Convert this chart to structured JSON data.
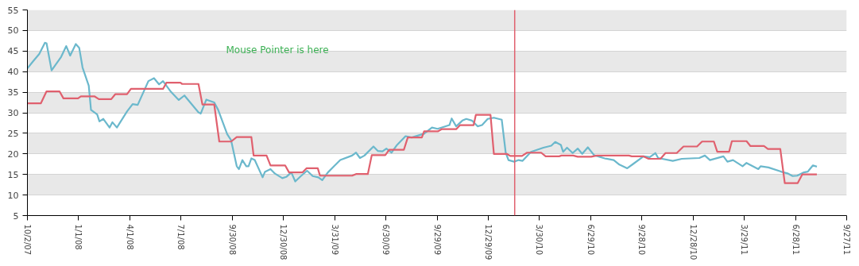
{
  "chart_data": {
    "type": "line",
    "annotations": [
      "Mouse Pointer is here"
    ],
    "xlim": [
      "2007-10-02",
      "2011-09-27"
    ],
    "xticks": [
      {
        "value": "2007-10-02",
        "label": "10/2/07"
      },
      {
        "value": "2008-01-01",
        "label": "1/1/08"
      },
      {
        "value": "2008-04-01",
        "label": "4/1/08"
      },
      {
        "value": "2008-07-01",
        "label": "7/1/08"
      },
      {
        "value": "2008-09-30",
        "label": "9/30/08"
      },
      {
        "value": "2008-12-30",
        "label": "12/30/08"
      },
      {
        "value": "2009-03-31",
        "label": "3/31/09"
      },
      {
        "value": "2009-06-30",
        "label": "6/30/09"
      },
      {
        "value": "2009-09-29",
        "label": "9/29/09"
      },
      {
        "value": "2009-12-29",
        "label": "12/29/09"
      },
      {
        "value": "2010-03-30",
        "label": "3/30/10"
      },
      {
        "value": "2010-06-29",
        "label": "6/29/10"
      },
      {
        "value": "2010-09-28",
        "label": "9/28/10"
      },
      {
        "value": "2010-12-28",
        "label": "12/28/10"
      },
      {
        "value": "2011-03-29",
        "label": "3/29/11"
      },
      {
        "value": "2011-06-28",
        "label": "6/28/11"
      },
      {
        "value": "2011-09-27",
        "label": "9/27/11"
      }
    ],
    "ylim": [
      5,
      55
    ],
    "yticks": [
      5,
      10,
      15,
      20,
      25,
      30,
      35,
      40,
      45,
      50,
      55
    ],
    "grid": "y",
    "line_style": "solid",
    "ref_lines": [
      {
        "axis": "x",
        "value": "2010-02-14",
        "label": null,
        "color": "#e0606e"
      }
    ],
    "series": [
      {
        "color": "#6bb8cc",
        "x": [
          "2007-10-02",
          "2007-10-12",
          "2007-10-23",
          "2007-11-02",
          "2007-11-05",
          "2007-11-14",
          "2007-12-01",
          "2007-12-10",
          "2007-12-17",
          "2007-12-27",
          "2008-01-02",
          "2008-01-08",
          "2008-01-19",
          "2008-01-23",
          "2008-02-03",
          "2008-02-07",
          "2008-02-14",
          "2008-02-25",
          "2008-03-01",
          "2008-03-09",
          "2008-03-27",
          "2008-04-06",
          "2008-04-15",
          "2008-05-04",
          "2008-05-14",
          "2008-05-23",
          "2008-05-30",
          "2008-06-13",
          "2008-06-27",
          "2008-07-07",
          "2008-08-01",
          "2008-08-05",
          "2008-08-15",
          "2008-08-29",
          "2008-09-05",
          "2008-09-21",
          "2008-09-28",
          "2008-10-08",
          "2008-10-12",
          "2008-10-18",
          "2008-10-25",
          "2008-10-29",
          "2008-11-03",
          "2008-11-09",
          "2008-11-20",
          "2008-11-23",
          "2008-11-27",
          "2008-12-07",
          "2008-12-15",
          "2008-12-28",
          "2009-01-04",
          "2009-01-13",
          "2009-01-20",
          "2009-01-30",
          "2009-02-10",
          "2009-02-20",
          "2009-03-02",
          "2009-03-09",
          "2009-03-19",
          "2009-03-30",
          "2009-04-10",
          "2009-05-01",
          "2009-05-08",
          "2009-05-15",
          "2009-05-23",
          "2009-06-08",
          "2009-06-16",
          "2009-06-24",
          "2009-07-01",
          "2009-07-10",
          "2009-07-20",
          "2009-08-04",
          "2009-08-15",
          "2009-09-06",
          "2009-09-20",
          "2009-09-30",
          "2009-10-21",
          "2009-10-25",
          "2009-11-02",
          "2009-11-13",
          "2009-11-20",
          "2009-11-30",
          "2009-12-10",
          "2009-12-18",
          "2009-12-28",
          "2010-01-08",
          "2010-01-22",
          "2010-01-29",
          "2010-02-03",
          "2010-02-13",
          "2010-02-21",
          "2010-02-28",
          "2010-03-15",
          "2010-04-06",
          "2010-04-20",
          "2010-04-27",
          "2010-05-07",
          "2010-05-11",
          "2010-05-18",
          "2010-05-28",
          "2010-06-06",
          "2010-06-14",
          "2010-06-24",
          "2010-07-05",
          "2010-07-24",
          "2010-08-09",
          "2010-08-19",
          "2010-09-02",
          "2010-09-12",
          "2010-10-01",
          "2010-10-12",
          "2010-10-22",
          "2010-10-27",
          "2010-11-22",
          "2010-12-08",
          "2011-01-08",
          "2011-01-18",
          "2011-01-27",
          "2011-02-20",
          "2011-02-27",
          "2011-03-09",
          "2011-03-26",
          "2011-04-02",
          "2011-04-23",
          "2011-04-27",
          "2011-05-11",
          "2011-06-02",
          "2011-06-15",
          "2011-06-23",
          "2011-07-01",
          "2011-07-13",
          "2011-07-20",
          "2011-07-29",
          "2011-08-05"
        ],
        "values": [
          40.8,
          42.5,
          44.3,
          47.0,
          46.9,
          40.3,
          43.6,
          46.2,
          43.9,
          46.7,
          45.8,
          41.0,
          36.6,
          30.7,
          29.6,
          27.9,
          28.5,
          26.4,
          27.7,
          26.4,
          30.3,
          32.1,
          31.9,
          37.7,
          38.4,
          36.9,
          37.7,
          35.1,
          33.1,
          34.2,
          30.1,
          29.8,
          33.2,
          32.5,
          30.7,
          24.8,
          23.3,
          17.0,
          16.3,
          18.5,
          17.0,
          17.0,
          18.9,
          18.5,
          15.2,
          14.3,
          15.6,
          16.3,
          15.2,
          14.1,
          14.4,
          15.5,
          13.3,
          14.6,
          15.9,
          14.6,
          14.3,
          13.6,
          15.5,
          17.0,
          18.5,
          19.6,
          20.3,
          19.0,
          19.6,
          21.8,
          20.7,
          20.6,
          21.3,
          20.3,
          22.2,
          24.3,
          24.0,
          24.9,
          26.4,
          26.1,
          27.0,
          28.6,
          26.7,
          28.1,
          28.5,
          28.1,
          26.7,
          27.0,
          28.5,
          28.8,
          28.3,
          20.3,
          18.5,
          18.1,
          18.5,
          18.3,
          20.5,
          21.5,
          22.0,
          22.9,
          22.2,
          20.5,
          21.5,
          20.2,
          21.3,
          20.0,
          21.6,
          19.7,
          18.9,
          18.5,
          17.4,
          16.5,
          17.5,
          19.4,
          19.2,
          20.2,
          19.0,
          18.3,
          18.8,
          19.0,
          19.6,
          18.5,
          19.4,
          18.1,
          18.5,
          17.0,
          17.8,
          16.3,
          17.0,
          16.7,
          15.7,
          15.2,
          14.6,
          14.7,
          15.5,
          15.7,
          17.2,
          16.9
        ]
      },
      {
        "color": "#e0606e",
        "x": [
          "2007-10-02",
          "2007-10-26",
          "2007-11-05",
          "2007-11-28",
          "2007-12-05",
          "2007-12-31",
          "2008-01-05",
          "2008-01-29",
          "2008-02-06",
          "2008-02-28",
          "2008-03-06",
          "2008-03-27",
          "2008-04-03",
          "2008-05-30",
          "2008-06-05",
          "2008-06-30",
          "2008-07-03",
          "2008-08-01",
          "2008-08-08",
          "2008-08-29",
          "2008-09-07",
          "2008-09-28",
          "2008-10-08",
          "2008-11-03",
          "2008-11-07",
          "2008-11-30",
          "2008-12-07",
          "2009-01-02",
          "2009-01-09",
          "2009-02-02",
          "2009-02-09",
          "2009-03-01",
          "2009-03-05",
          "2009-05-01",
          "2009-05-08",
          "2009-05-29",
          "2009-06-05",
          "2009-06-29",
          "2009-07-06",
          "2009-08-01",
          "2009-08-08",
          "2009-09-02",
          "2009-09-06",
          "2009-10-01",
          "2009-10-07",
          "2009-11-02",
          "2009-11-09",
          "2009-12-03",
          "2009-12-07",
          "2010-01-02",
          "2010-01-08",
          "2010-01-31",
          "2010-02-06",
          "2010-02-27",
          "2010-03-08",
          "2010-04-02",
          "2010-04-10",
          "2010-05-04",
          "2010-05-08",
          "2010-05-29",
          "2010-06-06",
          "2010-06-30",
          "2010-07-10",
          "2010-09-05",
          "2010-09-10",
          "2010-10-01",
          "2010-10-10",
          "2010-10-31",
          "2010-11-09",
          "2010-11-29",
          "2010-12-11",
          "2011-01-04",
          "2011-01-13",
          "2011-02-03",
          "2011-02-09",
          "2011-03-02",
          "2011-03-07",
          "2011-04-02",
          "2011-04-09",
          "2011-05-03",
          "2011-05-10",
          "2011-06-01",
          "2011-06-09",
          "2011-07-02",
          "2011-07-10",
          "2011-08-05"
        ],
        "values": [
          32.3,
          32.3,
          35.2,
          35.2,
          33.5,
          33.5,
          34.0,
          34.0,
          33.3,
          33.3,
          34.5,
          34.5,
          35.8,
          35.8,
          37.3,
          37.3,
          37.0,
          37.0,
          32.0,
          32.0,
          23.0,
          23.0,
          24.1,
          24.1,
          19.6,
          19.6,
          17.2,
          17.2,
          15.5,
          15.5,
          16.5,
          16.5,
          14.7,
          14.7,
          15.1,
          15.1,
          19.7,
          19.7,
          21.0,
          21.0,
          24.0,
          24.0,
          25.5,
          25.5,
          26.0,
          26.0,
          27.0,
          27.0,
          29.5,
          29.5,
          20.0,
          20.0,
          19.5,
          19.5,
          20.3,
          20.3,
          19.4,
          19.4,
          19.6,
          19.6,
          19.3,
          19.3,
          19.6,
          19.6,
          19.4,
          19.4,
          18.8,
          18.8,
          20.2,
          20.2,
          21.8,
          21.8,
          23.0,
          23.0,
          20.5,
          20.5,
          23.1,
          23.1,
          21.9,
          21.9,
          21.2,
          21.2,
          12.9,
          12.9,
          15.0,
          15.0
        ]
      }
    ]
  }
}
